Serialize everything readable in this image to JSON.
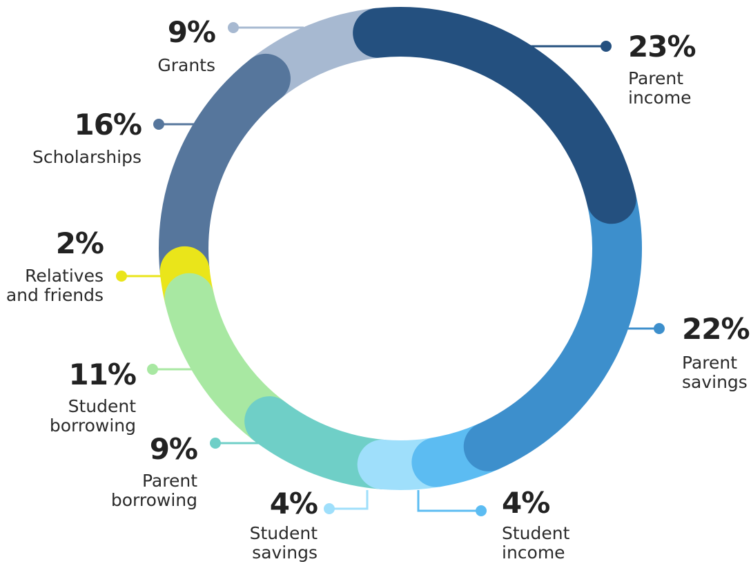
{
  "chart_data": {
    "type": "donut",
    "title": "",
    "segments": [
      {
        "value": 23,
        "value_label": "23%",
        "label_lines": [
          "Parent",
          "income"
        ],
        "color": "#24507F"
      },
      {
        "value": 22,
        "value_label": "22%",
        "label_lines": [
          "Parent",
          "savings"
        ],
        "color": "#3D8FCC"
      },
      {
        "value": 4,
        "value_label": "4%",
        "label_lines": [
          "Student",
          "income"
        ],
        "color": "#5CBCF2"
      },
      {
        "value": 4,
        "value_label": "4%",
        "label_lines": [
          "Student",
          "savings"
        ],
        "color": "#9FDFFB"
      },
      {
        "value": 9,
        "value_label": "9%",
        "label_lines": [
          "Parent",
          "borrowing"
        ],
        "color": "#6FCFC7"
      },
      {
        "value": 11,
        "value_label": "11%",
        "label_lines": [
          "Student",
          "borrowing"
        ],
        "color": "#A8E8A2"
      },
      {
        "value": 2,
        "value_label": "2%",
        "label_lines": [
          "Relatives",
          "and friends"
        ],
        "color": "#EAE51A"
      },
      {
        "value": 16,
        "value_label": "16%",
        "label_lines": [
          "Scholarships"
        ],
        "color": "#56769C"
      },
      {
        "value": 9,
        "value_label": "9%",
        "label_lines": [
          "Grants"
        ],
        "color": "#A7B9D1"
      }
    ]
  }
}
